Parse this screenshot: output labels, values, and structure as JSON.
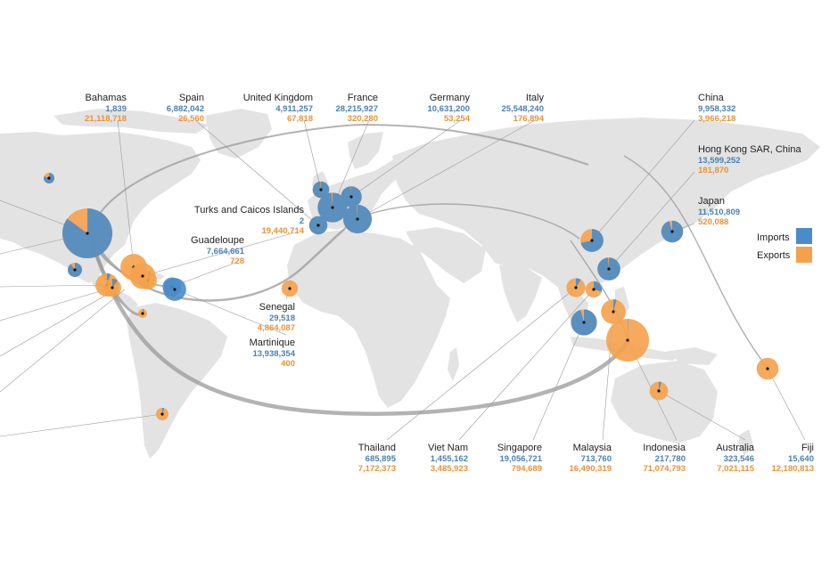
{
  "colors": {
    "imports": "#4a8cc9",
    "exports": "#f5a14b",
    "imports_text": "#4a81b4",
    "exports_text": "#e8923a",
    "land": "#e3e3e3",
    "flow": "#9a9a9a",
    "leader": "#9a9a9a"
  },
  "legend": {
    "imports_label": "Imports",
    "exports_label": "Exports"
  },
  "chart_data": {
    "type": "map",
    "series": [
      {
        "name": "Imports"
      },
      {
        "name": "Exports"
      }
    ],
    "countries": [
      {
        "id": "bahamas",
        "name": "Bahamas",
        "imports": "1,839",
        "exports": "21,118,718",
        "imports_value": 1839,
        "exports_value": 21118718
      },
      {
        "id": "spain",
        "name": "Spain",
        "imports": "6,882,042",
        "exports": "26,560",
        "imports_value": 6882042,
        "exports_value": 26560
      },
      {
        "id": "uk",
        "name": "United Kingdom",
        "imports": "4,911,257",
        "exports": "67,818",
        "imports_value": 4911257,
        "exports_value": 67818
      },
      {
        "id": "france",
        "name": "France",
        "imports": "28,215,927",
        "exports": "320,280",
        "imports_value": 28215927,
        "exports_value": 320280
      },
      {
        "id": "germany",
        "name": "Germany",
        "imports": "10,631,200",
        "exports": "53,254",
        "imports_value": 10631200,
        "exports_value": 53254
      },
      {
        "id": "italy",
        "name": "Italy",
        "imports": "25,548,240",
        "exports": "176,894",
        "imports_value": 25548240,
        "exports_value": 176894
      },
      {
        "id": "china",
        "name": "China",
        "imports": "9,958,332",
        "exports": "3,966,218",
        "imports_value": 9958332,
        "exports_value": 3966218
      },
      {
        "id": "hongkong",
        "name": "Hong Kong SAR, China",
        "imports": "13,599,252",
        "exports": "181,870",
        "imports_value": 13599252,
        "exports_value": 181870
      },
      {
        "id": "japan",
        "name": "Japan",
        "imports": "11,510,809",
        "exports": "520,088",
        "imports_value": 11510809,
        "exports_value": 520088
      },
      {
        "id": "turks",
        "name": "Turks and Caicos Islands",
        "imports": "2",
        "exports": "19,440,714",
        "imports_value": 2,
        "exports_value": 19440714
      },
      {
        "id": "guadeloupe",
        "name": "Guadeloupe",
        "imports": "7,664,661",
        "exports": "728",
        "imports_value": 7664661,
        "exports_value": 728
      },
      {
        "id": "senegal",
        "name": "Senegal",
        "imports": "29,518",
        "exports": "4,864,087",
        "imports_value": 29518,
        "exports_value": 4864087
      },
      {
        "id": "martinique",
        "name": "Martinique",
        "imports": "13,938,354",
        "exports": "400",
        "imports_value": 13938354,
        "exports_value": 400
      },
      {
        "id": "thailand",
        "name": "Thailand",
        "imports": "685,895",
        "exports": "7,172,373",
        "imports_value": 685895,
        "exports_value": 7172373
      },
      {
        "id": "vietnam",
        "name": "Viet Nam",
        "imports": "1,455,162",
        "exports": "3,485,923",
        "imports_value": 1455162,
        "exports_value": 3485923
      },
      {
        "id": "singapore",
        "name": "Singapore",
        "imports": "19,056,721",
        "exports": "794,689",
        "imports_value": 19056721,
        "exports_value": 794689
      },
      {
        "id": "malaysia",
        "name": "Malaysia",
        "imports": "713,760",
        "exports": "16,490,319",
        "imports_value": 713760,
        "exports_value": 16490319
      },
      {
        "id": "indonesia",
        "name": "Indonesia",
        "imports": "217,780",
        "exports": "71,074,793",
        "imports_value": 217780,
        "exports_value": 71074793
      },
      {
        "id": "australia",
        "name": "Australia",
        "imports": "323,546",
        "exports": "7,021,115",
        "imports_value": 323546,
        "exports_value": 7021115
      },
      {
        "id": "fiji",
        "name": "Fiji",
        "imports": "15,640",
        "exports": "12,180,813",
        "imports_value": 15640,
        "exports_value": 12180813
      }
    ]
  }
}
